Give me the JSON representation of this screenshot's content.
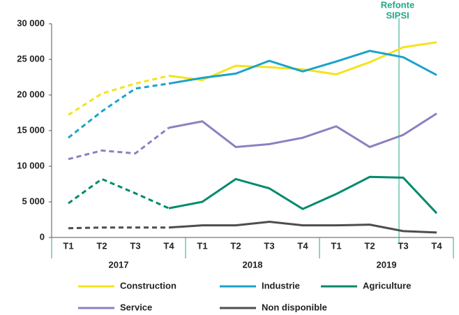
{
  "chart_data": {
    "type": "line",
    "categories": [
      "T1",
      "T2",
      "T3",
      "T4",
      "T1",
      "T2",
      "T3",
      "T4",
      "T1",
      "T2",
      "T3",
      "T4"
    ],
    "groups": [
      "2017",
      "2018",
      "2019"
    ],
    "series": [
      {
        "name": "Construction",
        "color": "#f5e31c",
        "values": [
          17200,
          20200,
          21600,
          22700,
          22100,
          24100,
          23900,
          23600,
          22900,
          24600,
          26700,
          27400
        ]
      },
      {
        "name": "Industrie",
        "color": "#1aa3cc",
        "values": [
          14000,
          17700,
          20900,
          21600,
          22400,
          23000,
          24800,
          23300,
          24700,
          26200,
          25300,
          22800
        ]
      },
      {
        "name": "Agriculture",
        "color": "#008a6c",
        "values": [
          4800,
          8200,
          6200,
          4100,
          5000,
          8200,
          6900,
          4000,
          6100,
          8500,
          8400,
          3400
        ]
      },
      {
        "name": "Service",
        "color": "#8b80c2",
        "values": [
          11000,
          12200,
          11800,
          15400,
          16300,
          12700,
          13100,
          14000,
          15600,
          12700,
          14400,
          17400
        ]
      },
      {
        "name": "Non disponible",
        "color": "#4d4d4d",
        "values": [
          1300,
          1400,
          1400,
          1400,
          1700,
          1700,
          2200,
          1700,
          1700,
          1800,
          900,
          700
        ]
      }
    ],
    "dashed_until": 3,
    "annotation": {
      "lines": [
        "Refonte",
        "SIPSI"
      ],
      "at": 10
    },
    "ylim": [
      0,
      30000
    ],
    "yticks": [
      0,
      {
        "value": 5000,
        "label": "5 000"
      },
      {
        "value": 10000,
        "label": "10 000"
      },
      {
        "value": 15000,
        "label": "15 000"
      },
      {
        "value": 20000,
        "label": "20 000"
      },
      {
        "value": 25000,
        "label": "25 000"
      },
      {
        "value": 30000,
        "label": "30 000"
      }
    ]
  }
}
